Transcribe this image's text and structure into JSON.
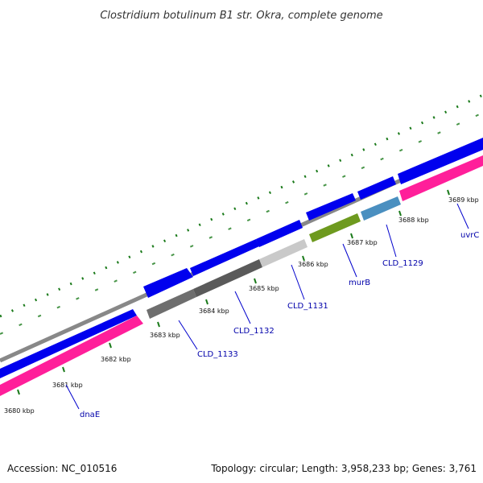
{
  "title": "Clostridium botulinum B1 str. Okra, complete genome",
  "footer": {
    "accession": "Accession: NC_010516",
    "summary": "Topology: circular; Length: 3,958,233 bp; Genes: 3,761"
  },
  "colors": {
    "backbone": "#888888",
    "forward_cds": "#0000ee",
    "reverse_track": "#ff1f9a",
    "gc_skew": "#1a7a1a",
    "label_line": "#0000cc",
    "label_text": "#0000aa"
  },
  "kbp_ticks": [
    "3680 kbp",
    "3681 kbp",
    "3682 kbp",
    "3683 kbp",
    "3684 kbp",
    "3685 kbp",
    "3686 kbp",
    "3687 kbp",
    "3688 kbp",
    "3689 kbp"
  ],
  "gene_labels": [
    "dnaE",
    "CLD_1133",
    "CLD_1132",
    "CLD_1131",
    "murB",
    "CLD_1129",
    "uvrC"
  ],
  "reverse_genes": [
    {
      "name": "CLD_1133",
      "color": "#6e6e6e"
    },
    {
      "name": "CLD_1132",
      "color": "#5a5a5a"
    },
    {
      "name": "CLD_1131",
      "color": "#c9c9c9"
    },
    {
      "name": "murB",
      "color": "#6e9a1f"
    },
    {
      "name": "CLD_1129",
      "color": "#4a8fc0"
    }
  ]
}
